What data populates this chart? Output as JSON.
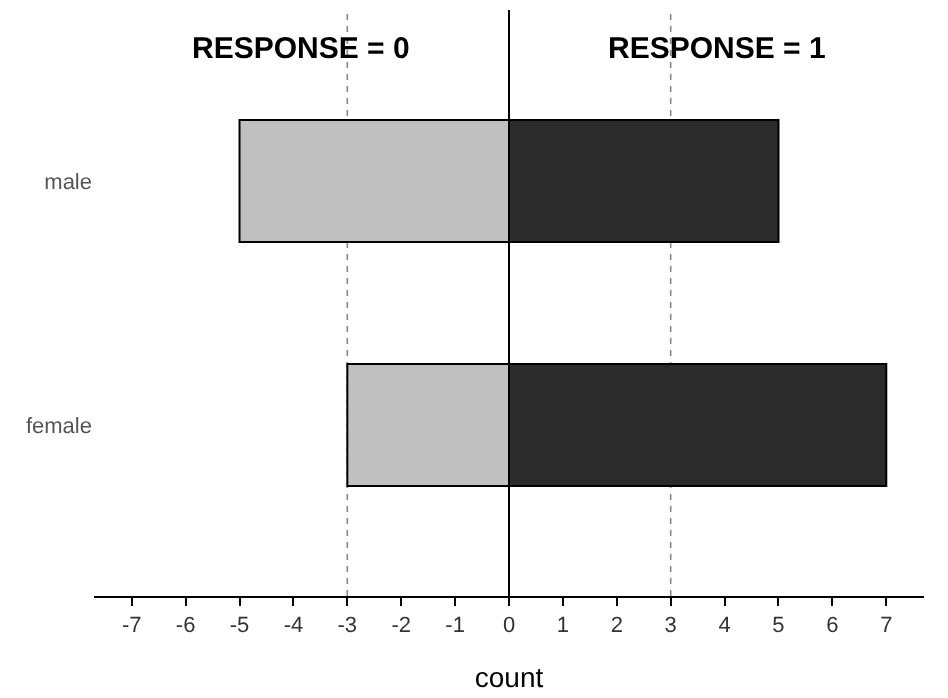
{
  "chart_data": {
    "type": "bar",
    "orientation": "horizontal",
    "stacked": true,
    "categories": [
      "male",
      "female"
    ],
    "series": [
      {
        "color": "#c0c0c0",
        "values": [
          -5,
          -3
        ]
      },
      {
        "color": "#2b2b2b",
        "values": [
          5,
          7
        ]
      }
    ],
    "xlabel": "count",
    "xlim": [
      -7.7,
      7.7
    ],
    "xticks": [
      -7,
      -6,
      -5,
      -4,
      -3,
      -2,
      -1,
      0,
      1,
      2,
      3,
      4,
      5,
      6,
      7
    ],
    "annotations": [
      "RESPONSE = 0",
      "RESPONSE = 1"
    ],
    "ref_lines": [
      {
        "axis": "x",
        "value": -3,
        "color": "#888888",
        "line_style": "dotted"
      },
      {
        "axis": "x",
        "value": 3,
        "color": "#888888",
        "line_style": "dotted"
      },
      {
        "axis": "x",
        "value": 0,
        "color": "#000000",
        "line_style": "solid"
      }
    ],
    "grid": false,
    "legend": false
  }
}
